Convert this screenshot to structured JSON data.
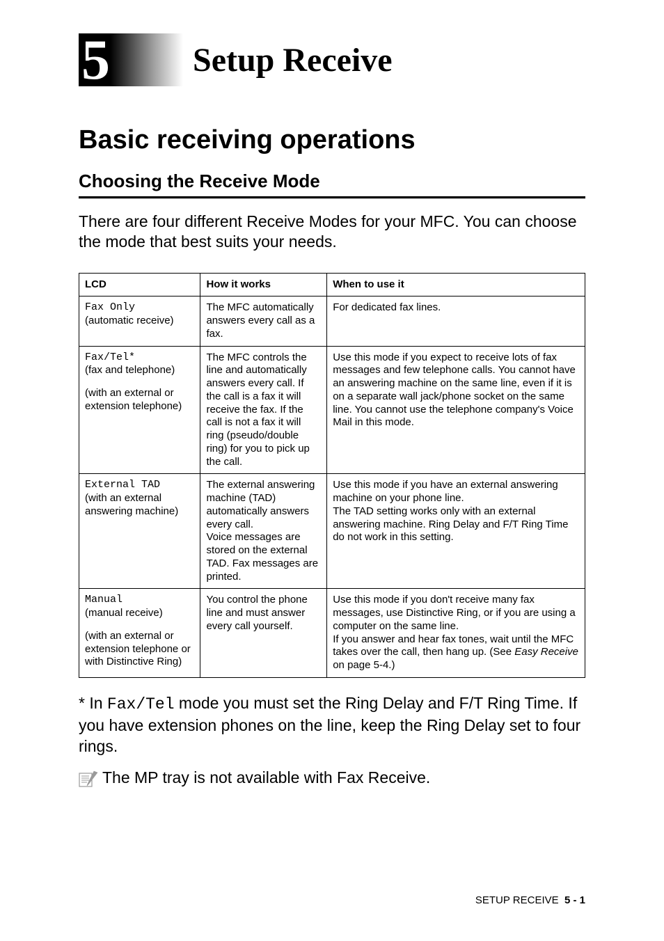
{
  "chapter": {
    "number": "5",
    "title": "Setup Receive"
  },
  "section_h1": "Basic receiving operations",
  "section_h2": "Choosing the Receive Mode",
  "intro": "There are four different Receive Modes for your MFC. You can choose the mode that best suits your needs.",
  "table": {
    "columns": [
      "LCD",
      "How it works",
      "When to use it"
    ],
    "rows": [
      {
        "lcd_code": "Fax Only",
        "lcd_sub1": "(automatic receive)",
        "lcd_sub2": "",
        "how": "The MFC automatically answers every call as a fax.",
        "when": "For dedicated fax lines.",
        "when_extra": "",
        "when_ref": ""
      },
      {
        "lcd_code": "Fax/Tel*",
        "lcd_sub1": "(fax and telephone)",
        "lcd_sub2": "(with an external or extension telephone)",
        "how": "The MFC controls the line and automatically answers every call. If the call is a fax it will receive the fax. If the call is not a fax it will ring (pseudo/double ring) for you to pick up the call.",
        "when": "Use this mode if you expect to receive lots of fax messages and few telephone calls. You cannot have an answering machine on the same line, even if it is on a separate wall jack/phone socket on the same line. You cannot use the telephone company's Voice Mail in this mode.",
        "when_extra": "",
        "when_ref": ""
      },
      {
        "lcd_code": "External TAD",
        "lcd_sub1": "(with an external answering machine)",
        "lcd_sub2": "",
        "how": "The external answering machine (TAD) automatically answers every call.\nVoice messages are stored on the external TAD. Fax messages are printed.",
        "when": "Use this mode if you have an external answering machine on your phone line.\nThe TAD setting works only with an external answering machine. Ring Delay and F/T Ring Time do not work in this setting.",
        "when_extra": "",
        "when_ref": ""
      },
      {
        "lcd_code": "Manual",
        "lcd_sub1": "(manual receive)",
        "lcd_sub2": "(with an external or extension telephone or with Distinctive Ring)",
        "how": "You control the phone line and must answer every call yourself.",
        "when": "Use this mode if you don't receive many fax messages, use Distinctive Ring, or if you are using a computer on the same line.",
        "when_extra": "If you answer and hear fax tones, wait until the MFC takes over the call, then hang up. (See ",
        "when_ref": "Easy Receive",
        "when_ref_tail": " on page 5-4.)"
      }
    ]
  },
  "footnote_prefix": "* In ",
  "footnote_mono": "Fax/Tel",
  "footnote_suffix": " mode you must set the Ring Delay and F/T Ring Time. If you have extension phones on the line, keep the Ring Delay set to four rings.",
  "note_text": "The MP tray is not available with Fax Receive.",
  "footer": {
    "label": "SETUP RECEIVE",
    "page": "5 - 1"
  }
}
